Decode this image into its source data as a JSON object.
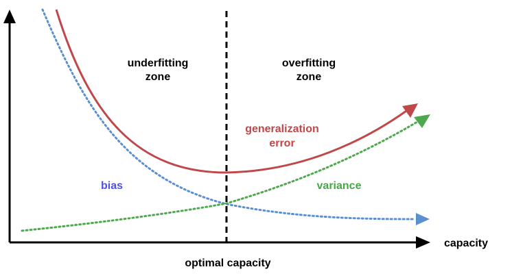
{
  "zones": {
    "underfitting": {
      "line1": "underfitting",
      "line2": "zone"
    },
    "overfitting": {
      "line1": "overfitting",
      "line2": "zone"
    }
  },
  "curves": {
    "generalization_error": {
      "line1": "generalization",
      "line2": "error",
      "color": "#c0474a"
    },
    "bias": {
      "label": "bias",
      "color": "#5b8fd0",
      "label_color": "#4f4ff0"
    },
    "variance": {
      "label": "variance",
      "color": "#4ea84e",
      "label_color": "#44a845"
    }
  },
  "axes": {
    "x_label": "capacity",
    "optimal_label": "optimal capacity",
    "color": "#000000"
  }
}
